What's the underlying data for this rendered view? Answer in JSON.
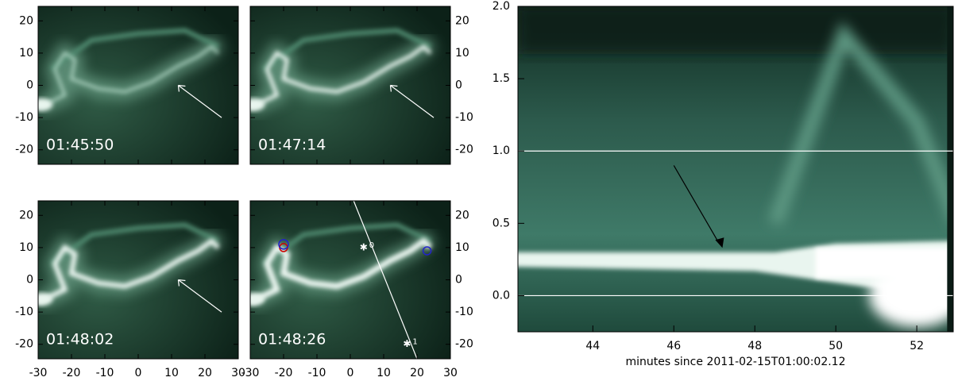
{
  "image_panels": {
    "xlim": [
      -30,
      30
    ],
    "ylim": [
      -24.5,
      24.5
    ],
    "xticks": [
      -30,
      -20,
      -10,
      0,
      10,
      20,
      30
    ],
    "yticks": [
      -20,
      -10,
      0,
      10,
      20
    ],
    "timestamps": [
      "01:45:50",
      "01:47:14",
      "01:48:02",
      "01:48:26"
    ],
    "track_labels": [
      "0",
      "1"
    ]
  },
  "timeslice": {
    "xlabel": "minutes since 2011-02-15T01:00:02.12",
    "xlim": [
      42.15,
      52.9
    ],
    "xticks": [
      44,
      46,
      48,
      50,
      52
    ],
    "ylim": [
      -0.25,
      2.0
    ],
    "yticks": [
      {
        "value": 0,
        "label": "0.0"
      },
      0.5,
      {
        "value": 1,
        "label": "1.0"
      },
      1.5,
      {
        "value": 2,
        "label": "2.0"
      }
    ]
  }
}
